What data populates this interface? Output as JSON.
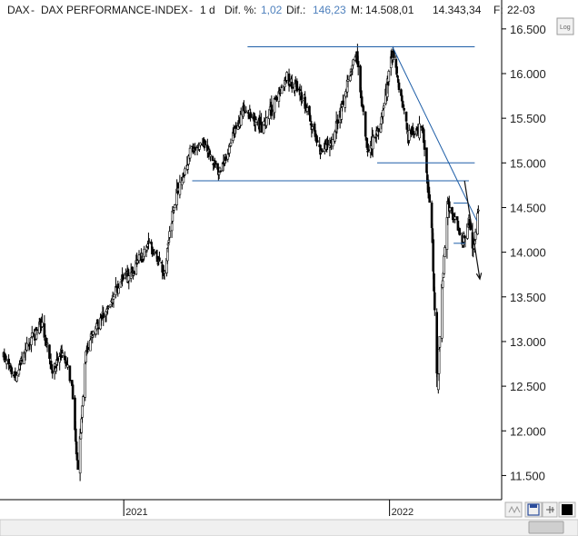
{
  "header": {
    "symbol": "DAX",
    "sep1": "-",
    "name": "DAX PERFORMANCE-INDEX",
    "sep2": "-",
    "period": "1 d",
    "dif_pct_label": "Dif. %:",
    "dif_pct_value": "1,02",
    "dif_label": "Dif.:",
    "dif_value": "146,23",
    "max_label": "M:",
    "max_value": "14.508,01",
    "min_value": "14.343,34",
    "date_label": "F:",
    "date_value": "22-03"
  },
  "toolbar": {
    "log_label": "Log"
  },
  "colors": {
    "accent_blue": "#4f81bd",
    "line_blue": "#1f5fa8",
    "candle": "#000000"
  },
  "chart_data": {
    "type": "candlestick",
    "title": "DAX - DAX PERFORMANCE-INDEX - 1 d",
    "ylim": [
      11250,
      16600
    ],
    "y_ticks": [
      "16.500",
      "16.000",
      "15.500",
      "15.000",
      "14.500",
      "14.000",
      "13.500",
      "13.000",
      "12.500",
      "12.000",
      "11.500"
    ],
    "y_tick_values": [
      16500,
      16000,
      15500,
      15000,
      14500,
      14000,
      13500,
      13000,
      12500,
      12000,
      11500
    ],
    "x_ticks": [
      "2021",
      "2022"
    ],
    "x_tick_dates": [
      "2021-01-01",
      "2022-01-01"
    ],
    "x_range": [
      "2020-07-20",
      "2022-05-30"
    ],
    "price_path": [
      [
        "2020-07-20",
        12850
      ],
      [
        "2020-08-05",
        12600
      ],
      [
        "2020-08-25",
        13000
      ],
      [
        "2020-09-10",
        13200
      ],
      [
        "2020-09-25",
        12650
      ],
      [
        "2020-10-10",
        12900
      ],
      [
        "2020-10-22",
        12500
      ],
      [
        "2020-10-30",
        11550
      ],
      [
        "2020-11-10",
        12900
      ],
      [
        "2020-12-01",
        13250
      ],
      [
        "2020-12-28",
        13650
      ],
      [
        "2021-01-15",
        13800
      ],
      [
        "2021-02-05",
        14100
      ],
      [
        "2021-02-26",
        13750
      ],
      [
        "2021-03-10",
        14500
      ],
      [
        "2021-04-01",
        15100
      ],
      [
        "2021-04-20",
        15250
      ],
      [
        "2021-05-12",
        14900
      ],
      [
        "2021-06-15",
        15600
      ],
      [
        "2021-07-10",
        15400
      ],
      [
        "2021-08-13",
        15950
      ],
      [
        "2021-09-01",
        15800
      ],
      [
        "2021-09-28",
        15150
      ],
      [
        "2021-10-13",
        15200
      ],
      [
        "2021-11-17",
        16250
      ],
      [
        "2021-12-01",
        15150
      ],
      [
        "2021-12-20",
        15400
      ],
      [
        "2022-01-05",
        16250
      ],
      [
        "2022-01-27",
        15300
      ],
      [
        "2022-02-15",
        15400
      ],
      [
        "2022-02-28",
        14300
      ],
      [
        "2022-03-08",
        12500
      ],
      [
        "2022-03-14",
        13600
      ],
      [
        "2022-03-22",
        14508
      ],
      [
        "2022-04-01",
        14400
      ],
      [
        "2022-04-11",
        14100
      ],
      [
        "2022-04-20",
        14350
      ],
      [
        "2022-04-25",
        14000
      ],
      [
        "2022-05-03",
        14500
      ]
    ],
    "annotations": {
      "horizontal_lines": [
        {
          "level": 16300,
          "from": "2021-06-20",
          "to": "2022-04-28"
        },
        {
          "level": 15000,
          "from": "2021-12-15",
          "to": "2022-04-28"
        },
        {
          "level": 14800,
          "from": "2021-04-05",
          "to": "2022-04-20"
        },
        {
          "level": 14550,
          "from": "2022-03-30",
          "to": "2022-04-18"
        },
        {
          "level": 14100,
          "from": "2022-03-30",
          "to": "2022-04-15"
        }
      ],
      "trendlines": [
        {
          "from": [
            "2022-01-05",
            16300
          ],
          "to": [
            "2022-05-01",
            14350
          ]
        }
      ],
      "arrows": [
        {
          "from": [
            "2022-04-14",
            14800
          ],
          "to": [
            "2022-05-05",
            13700
          ]
        }
      ]
    }
  }
}
